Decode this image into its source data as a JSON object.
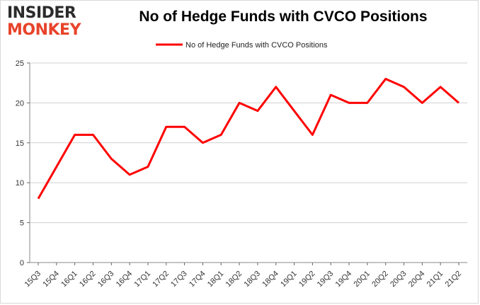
{
  "logo": {
    "line1": "INSIDER",
    "line2": "MONKEY"
  },
  "chart_data": {
    "type": "line",
    "title": "No of Hedge Funds with CVCO Positions",
    "categories": [
      "15Q3",
      "15Q4",
      "16Q1",
      "16Q2",
      "16Q3",
      "16Q4",
      "17Q1",
      "17Q2",
      "17Q3",
      "17Q4",
      "18Q1",
      "18Q2",
      "18Q3",
      "18Q4",
      "19Q1",
      "19Q2",
      "19Q3",
      "19Q4",
      "20Q1",
      "20Q2",
      "20Q3",
      "20Q4",
      "21Q1",
      "21Q2"
    ],
    "series": [
      {
        "name": "No of Hedge Funds with CVCO Positions",
        "values": [
          8,
          12,
          16,
          16,
          13,
          11,
          12,
          17,
          17,
          15,
          16,
          20,
          19,
          22,
          19,
          16,
          21,
          20,
          20,
          23,
          22,
          20,
          22,
          20
        ],
        "color": "#ff0000"
      }
    ],
    "yticks": [
      0,
      5,
      10,
      15,
      20,
      25
    ],
    "ylim": [
      0,
      25
    ],
    "grid": true,
    "legend_position": "top-center"
  }
}
